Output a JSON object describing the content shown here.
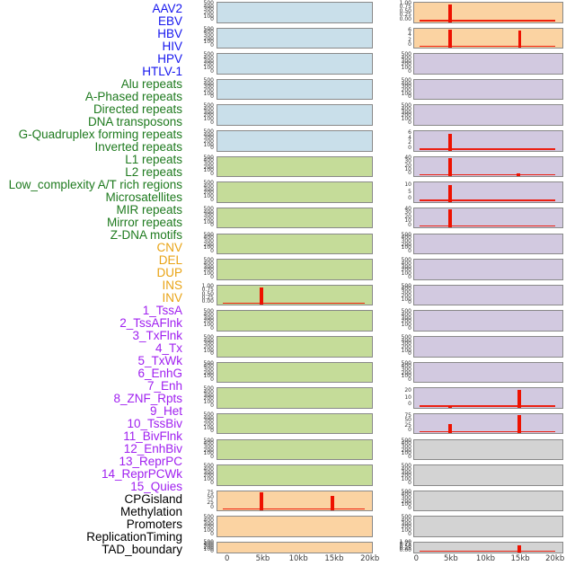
{
  "chart_data": {
    "type": "area",
    "title": "",
    "description_of_view": "44 genomic feature signal tracks in two panel columns over a 0-20kb window",
    "x_axis": {
      "tick_labels": [
        "0",
        "5kb",
        "10kb",
        "15kb",
        "20kb"
      ],
      "tick_kb": [
        0,
        5,
        10,
        15,
        20
      ],
      "range_kb": [
        0,
        20
      ]
    },
    "spike_color": "#ee1100",
    "groups": {
      "virus": {
        "panel_color": "#c9dfea",
        "label_color": "#1414ee"
      },
      "repeat": {
        "panel_color": "#c5dc99",
        "label_color": "#1e7a1e"
      },
      "variant": {
        "panel_color": "#fbd3a2",
        "label_color": "#e9a314"
      },
      "chromatin": {
        "panel_color": "#d2c9e0",
        "label_color": "#a020f0"
      },
      "annotation": {
        "panel_color": "#d3d3d3",
        "label_color": "#000000"
      }
    },
    "tracks": [
      {
        "label": "AAV2",
        "group": "virus",
        "y_ticks": [
          "500",
          "400",
          "300",
          "200",
          "100",
          "0"
        ],
        "spikes": [],
        "baseline": false
      },
      {
        "label": "EBV",
        "group": "virus",
        "y_ticks": [
          "500",
          "400",
          "300",
          "200",
          "100",
          "0"
        ],
        "spikes": [],
        "baseline": false
      },
      {
        "label": "HBV",
        "group": "virus",
        "y_ticks": [
          "500",
          "400",
          "300",
          "200",
          "100",
          "0"
        ],
        "spikes": [],
        "baseline": false
      },
      {
        "label": "HIV",
        "group": "virus",
        "y_ticks": [
          "500",
          "400",
          "300",
          "200",
          "100",
          "0"
        ],
        "spikes": [],
        "baseline": false
      },
      {
        "label": "HPV",
        "group": "virus",
        "y_ticks": [
          "500",
          "400",
          "300",
          "200",
          "100",
          "0"
        ],
        "spikes": [],
        "baseline": false
      },
      {
        "label": "HTLV-1",
        "group": "virus",
        "y_ticks": [
          "500",
          "400",
          "300",
          "200",
          "100",
          "0"
        ],
        "spikes": [],
        "baseline": false
      },
      {
        "label": "Alu repeats",
        "group": "repeat",
        "y_ticks": [
          "500",
          "400",
          "300",
          "200",
          "100",
          "0"
        ],
        "spikes": [],
        "baseline": false
      },
      {
        "label": "A-Phased repeats",
        "group": "repeat",
        "y_ticks": [
          "500",
          "400",
          "300",
          "200",
          "100",
          "0"
        ],
        "spikes": [],
        "baseline": false
      },
      {
        "label": "Directed repeats",
        "group": "repeat",
        "y_ticks": [
          "500",
          "400",
          "300",
          "200",
          "100",
          "0"
        ],
        "spikes": [],
        "baseline": false
      },
      {
        "label": "DNA transposons",
        "group": "repeat",
        "y_ticks": [
          "500",
          "400",
          "300",
          "200",
          "100",
          "0"
        ],
        "spikes": [],
        "baseline": false
      },
      {
        "label": "G-Quadruplex forming repeats",
        "group": "repeat",
        "y_ticks": [
          "500",
          "400",
          "300",
          "200",
          "100",
          "0"
        ],
        "spikes": [],
        "baseline": false
      },
      {
        "label": "Inverted repeats",
        "group": "repeat",
        "y_ticks": [
          "1.00",
          "0.75",
          "0.50",
          "0.25",
          "0.00"
        ],
        "spikes": [
          {
            "kb": 4.7,
            "frac": 0.95
          }
        ],
        "baseline": true
      },
      {
        "label": "L1 repeats",
        "group": "repeat",
        "y_ticks": [
          "500",
          "400",
          "300",
          "200",
          "100",
          "0"
        ],
        "spikes": [],
        "baseline": false
      },
      {
        "label": "L2 repeats",
        "group": "repeat",
        "y_ticks": [
          "500",
          "400",
          "300",
          "200",
          "100",
          "0"
        ],
        "spikes": [],
        "baseline": false
      },
      {
        "label": "Low_complexity A/T rich regions",
        "group": "repeat",
        "y_ticks": [
          "500",
          "400",
          "300",
          "200",
          "100",
          "0"
        ],
        "spikes": [],
        "baseline": false
      },
      {
        "label": "Microsatellites",
        "group": "repeat",
        "y_ticks": [
          "500",
          "400",
          "300",
          "200",
          "100",
          "0"
        ],
        "spikes": [],
        "baseline": false
      },
      {
        "label": "MIR repeats",
        "group": "repeat",
        "y_ticks": [
          "500",
          "400",
          "300",
          "200",
          "100",
          "0"
        ],
        "spikes": [],
        "baseline": false
      },
      {
        "label": "Mirror repeats",
        "group": "repeat",
        "y_ticks": [
          "500",
          "400",
          "300",
          "200",
          "100",
          "0"
        ],
        "spikes": [],
        "baseline": false
      },
      {
        "label": "Z-DNA motifs",
        "group": "repeat",
        "y_ticks": [
          "500",
          "400",
          "300",
          "200",
          "100",
          "0"
        ],
        "spikes": [],
        "baseline": false
      },
      {
        "label": "CNV",
        "group": "variant",
        "y_ticks": [
          "75",
          "50",
          "25",
          "0"
        ],
        "spikes": [
          {
            "kb": 4.7,
            "frac": 1.0
          },
          {
            "kb": 14.6,
            "frac": 0.8
          }
        ],
        "baseline": true
      },
      {
        "label": "DEL",
        "group": "variant",
        "y_ticks": [
          "500",
          "400",
          "300",
          "200",
          "100",
          "0"
        ],
        "spikes": [],
        "baseline": false
      },
      {
        "label": "DUP",
        "group": "variant",
        "y_ticks": [
          "500",
          "400",
          "300",
          "200",
          "100",
          "0"
        ],
        "spikes": [],
        "baseline": false
      },
      {
        "label": "INS",
        "group": "variant",
        "y_ticks": [
          "1.00",
          "0.75",
          "0.50",
          "0.25",
          "0.00"
        ],
        "spikes": [
          {
            "kb": 4.75,
            "frac": 0.97
          }
        ],
        "baseline": true
      },
      {
        "label": "INV",
        "group": "variant",
        "y_ticks": [
          "6",
          "4",
          "2",
          "0"
        ],
        "spikes": [
          {
            "kb": 4.75,
            "frac": 1.0
          },
          {
            "kb": 14.8,
            "frac": 0.97
          }
        ],
        "baseline": true
      },
      {
        "label": "1_TssA",
        "group": "chromatin",
        "y_ticks": [
          "500",
          "400",
          "300",
          "200",
          "100",
          "0"
        ],
        "spikes": [],
        "baseline": false
      },
      {
        "label": "2_TssAFlnk",
        "group": "chromatin",
        "y_ticks": [
          "500",
          "400",
          "300",
          "200",
          "100",
          "0"
        ],
        "spikes": [],
        "baseline": false
      },
      {
        "label": "3_TxFlnk",
        "group": "chromatin",
        "y_ticks": [
          "500",
          "400",
          "300",
          "200",
          "100",
          "0"
        ],
        "spikes": [],
        "baseline": false
      },
      {
        "label": "4_Tx",
        "group": "chromatin",
        "y_ticks": [
          "6",
          "4",
          "2",
          "0"
        ],
        "spikes": [
          {
            "kb": 4.75,
            "frac": 0.95
          }
        ],
        "baseline": true
      },
      {
        "label": "5_TxWk",
        "group": "chromatin",
        "y_ticks": [
          "40",
          "30",
          "20",
          "10",
          "0"
        ],
        "spikes": [
          {
            "kb": 4.75,
            "frac": 1.0
          },
          {
            "kb": 14.6,
            "frac": 0.18
          }
        ],
        "baseline": true
      },
      {
        "label": "6_EnhG",
        "group": "chromatin",
        "y_ticks": [
          "10",
          "5",
          "0"
        ],
        "spikes": [
          {
            "kb": 4.75,
            "frac": 0.95
          }
        ],
        "baseline": true
      },
      {
        "label": "7_Enh",
        "group": "chromatin",
        "y_ticks": [
          "40",
          "30",
          "20",
          "10",
          "0"
        ],
        "spikes": [
          {
            "kb": 4.75,
            "frac": 1.0
          }
        ],
        "baseline": true
      },
      {
        "label": "8_ZNF_Rpts",
        "group": "chromatin",
        "y_ticks": [
          "500",
          "400",
          "300",
          "200",
          "100",
          "0"
        ],
        "spikes": [],
        "baseline": false
      },
      {
        "label": "9_Het",
        "group": "chromatin",
        "y_ticks": [
          "500",
          "400",
          "300",
          "200",
          "100",
          "0"
        ],
        "spikes": [],
        "baseline": false
      },
      {
        "label": "10_TssBiv",
        "group": "chromatin",
        "y_ticks": [
          "500",
          "400",
          "300",
          "200",
          "100",
          "0"
        ],
        "spikes": [],
        "baseline": false
      },
      {
        "label": "11_BivFlnk",
        "group": "chromatin",
        "y_ticks": [
          "500",
          "400",
          "300",
          "200",
          "100",
          "0"
        ],
        "spikes": [],
        "baseline": false
      },
      {
        "label": "12_EnhBiv",
        "group": "chromatin",
        "y_ticks": [
          "500",
          "400",
          "300",
          "200",
          "100",
          "0"
        ],
        "spikes": [],
        "baseline": false
      },
      {
        "label": "13_ReprPC",
        "group": "chromatin",
        "y_ticks": [
          "500",
          "400",
          "300",
          "200",
          "100",
          "0"
        ],
        "spikes": [],
        "baseline": false
      },
      {
        "label": "14_ReprPCWk",
        "group": "chromatin",
        "y_ticks": [
          "20",
          "10",
          "0"
        ],
        "spikes": [
          {
            "kb": 4.75,
            "frac": 0.08
          },
          {
            "kb": 14.7,
            "frac": 1.0
          }
        ],
        "baseline": true
      },
      {
        "label": "15_Quies",
        "group": "chromatin",
        "y_ticks": [
          "75",
          "50",
          "25",
          "0"
        ],
        "spikes": [
          {
            "kb": 4.75,
            "frac": 0.5
          },
          {
            "kb": 14.7,
            "frac": 1.0
          }
        ],
        "baseline": true
      },
      {
        "label": "CPGisland",
        "group": "annotation",
        "y_ticks": [
          "500",
          "400",
          "300",
          "200",
          "100",
          "0"
        ],
        "spikes": [],
        "baseline": false
      },
      {
        "label": "Methylation",
        "group": "annotation",
        "y_ticks": [
          "500",
          "400",
          "300",
          "200",
          "100",
          "0"
        ],
        "spikes": [],
        "baseline": false
      },
      {
        "label": "Promoters",
        "group": "annotation",
        "y_ticks": [
          "500",
          "400",
          "300",
          "200",
          "100",
          "0"
        ],
        "spikes": [],
        "baseline": false
      },
      {
        "label": "ReplicationTiming",
        "group": "annotation",
        "y_ticks": [
          "500",
          "400",
          "300",
          "200",
          "100",
          "0"
        ],
        "spikes": [],
        "baseline": false
      },
      {
        "label": "TAD_boundary",
        "group": "annotation",
        "y_ticks": [
          "1.00",
          "0.75",
          "0.50",
          "0.25",
          "0.00"
        ],
        "spikes": [
          {
            "kb": 14.7,
            "frac": 0.85
          }
        ],
        "baseline": true
      }
    ]
  }
}
